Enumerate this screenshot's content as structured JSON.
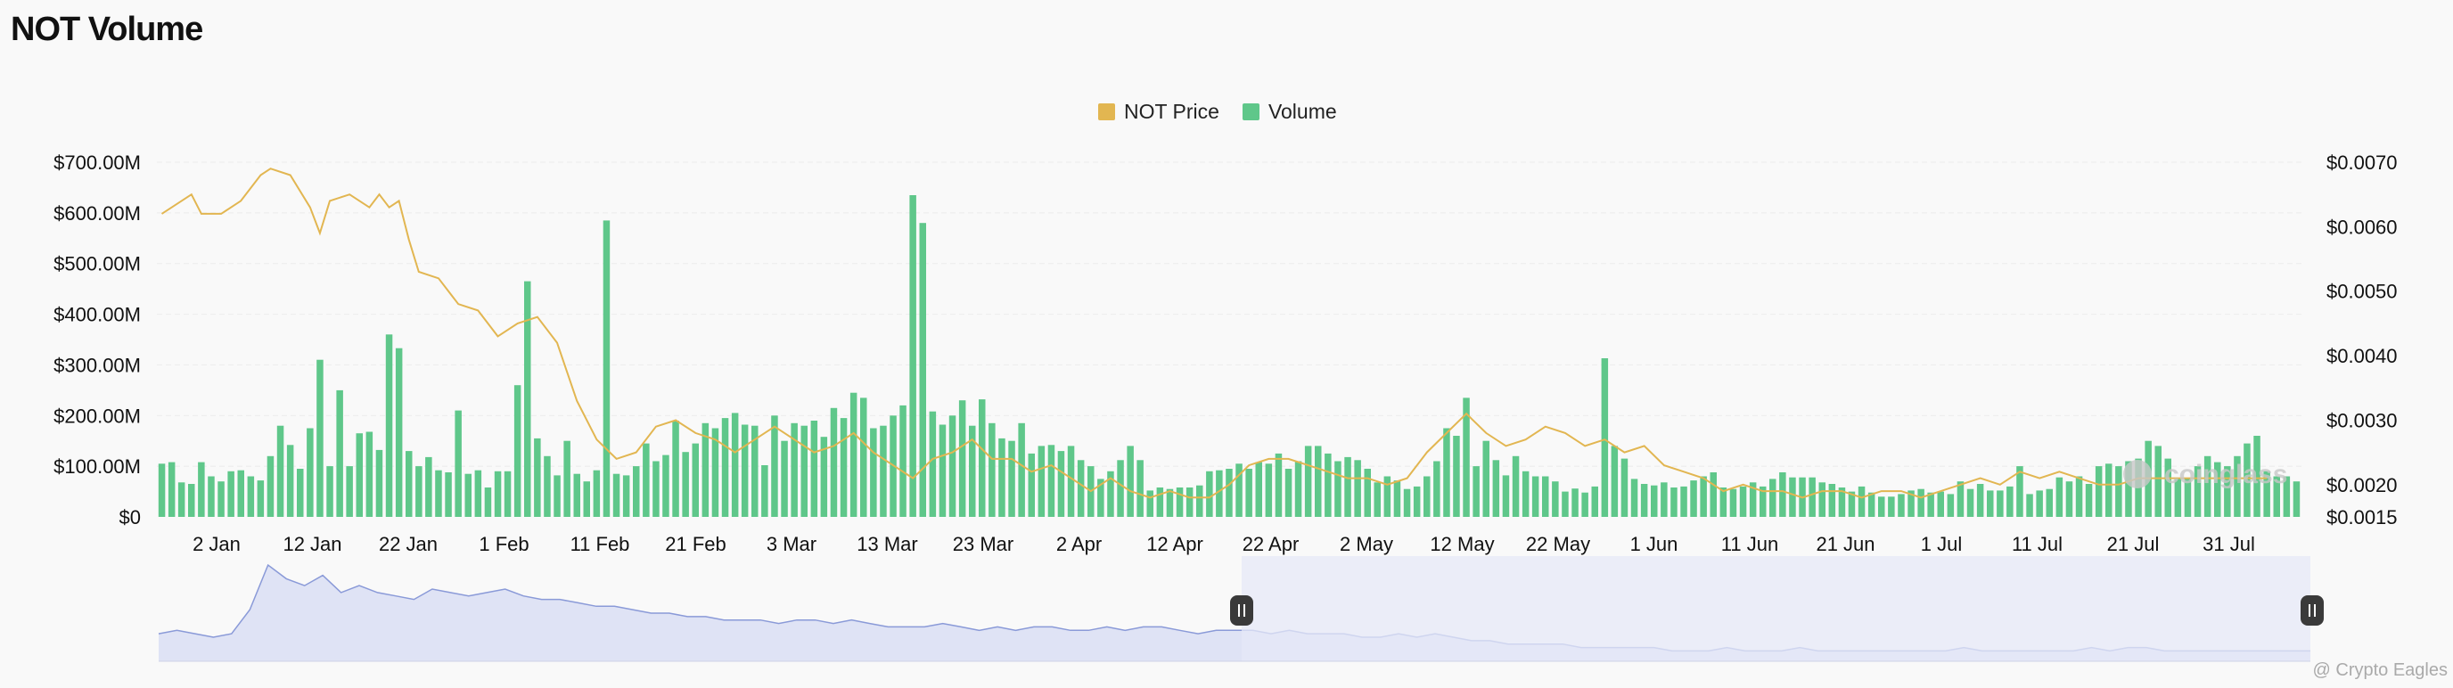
{
  "title": "NOT Volume",
  "watermark": "@ Crypto Eagles",
  "brand_watermark": "coinglass",
  "colors": {
    "background": "#f9f9f9",
    "price": "#e2b651",
    "volume": "#5fc78a",
    "navigator_line": "#8a9ad8",
    "navigator_fill": "#dfe3f5",
    "navigator_selected": "#e6e8f7",
    "grid": "#ececec"
  },
  "legend": [
    {
      "label": "NOT Price",
      "color": "#e2b651"
    },
    {
      "label": "Volume",
      "color": "#5fc78a"
    }
  ],
  "chart_data": {
    "type": "bar",
    "title": "NOT Volume",
    "xlabel": "",
    "ylabel": "",
    "grid": true,
    "legend_position": "top-center",
    "x_tick_labels": [
      "2 Jan",
      "12 Jan",
      "22 Jan",
      "1 Feb",
      "11 Feb",
      "21 Feb",
      "3 Mar",
      "13 Mar",
      "23 Mar",
      "2 Apr",
      "12 Apr",
      "22 Apr",
      "2 May",
      "12 May",
      "22 May",
      "1 Jun",
      "11 Jun",
      "21 Jun",
      "1 Jul",
      "11 Jul",
      "21 Jul",
      "31 Jul"
    ],
    "y_left": {
      "min": 0,
      "max": 700,
      "unit": "M",
      "tick_labels": [
        "$0",
        "$100.00M",
        "$200.00M",
        "$300.00M",
        "$400.00M",
        "$500.00M",
        "$600.00M",
        "$700.00M"
      ]
    },
    "y_right": {
      "min": 0.0015,
      "max": 0.007,
      "tick_labels": [
        "$0.0015",
        "$0.0020",
        "$0.0030",
        "$0.0040",
        "$0.0050",
        "$0.0060",
        "$0.0070"
      ]
    },
    "series": [
      {
        "name": "Volume",
        "type": "bar",
        "axis": "left",
        "values": [
          105,
          108,
          68,
          65,
          108,
          80,
          70,
          90,
          92,
          80,
          72,
          120,
          180,
          142,
          95,
          175,
          310,
          100,
          250,
          100,
          165,
          168,
          132,
          360,
          333,
          130,
          100,
          118,
          92,
          88,
          210,
          85,
          92,
          58,
          90,
          90,
          260,
          465,
          155,
          120,
          82,
          150,
          85,
          70,
          92,
          585,
          85,
          82,
          100,
          145,
          110,
          122,
          190,
          128,
          145,
          185,
          175,
          195,
          205,
          182,
          180,
          102,
          200,
          150,
          185,
          180,
          190,
          158,
          215,
          195,
          245,
          235,
          175,
          180,
          200,
          220,
          635,
          580,
          208,
          182,
          200,
          230,
          180,
          232,
          185,
          155,
          150,
          185,
          125,
          140,
          142,
          130,
          140,
          112,
          100,
          75,
          90,
          112,
          140,
          112,
          52,
          58,
          55,
          58,
          58,
          62,
          90,
          92,
          95,
          105,
          95,
          108,
          105,
          125,
          95,
          110,
          140,
          140,
          125,
          110,
          118,
          112,
          95,
          68,
          80,
          72,
          55,
          60,
          80,
          110,
          175,
          160,
          235,
          100,
          150,
          112,
          82,
          120,
          90,
          80,
          80,
          70,
          50,
          56,
          48,
          60,
          313,
          140,
          115,
          75,
          65,
          62,
          68,
          58,
          60,
          72,
          80,
          88,
          58,
          55,
          60,
          68,
          60,
          75,
          88,
          78,
          78,
          78,
          68,
          65,
          58,
          50,
          60,
          48,
          40,
          40,
          45,
          52,
          55,
          48,
          50,
          45,
          70,
          55,
          65,
          52,
          52,
          60,
          100,
          45,
          52,
          55,
          78,
          70,
          80,
          65,
          100,
          105,
          100,
          110,
          115,
          150,
          140,
          115,
          75,
          75,
          100,
          120,
          108,
          100,
          120,
          145,
          160,
          90,
          80,
          80,
          70
        ]
      },
      {
        "name": "NOT Price",
        "type": "line",
        "axis": "right",
        "points": [
          [
            0,
            0.0062
          ],
          [
            2,
            0.0064
          ],
          [
            3,
            0.0065
          ],
          [
            4,
            0.0062
          ],
          [
            6,
            0.0062
          ],
          [
            8,
            0.0064
          ],
          [
            10,
            0.0068
          ],
          [
            11,
            0.0069
          ],
          [
            13,
            0.0068
          ],
          [
            15,
            0.0063
          ],
          [
            16,
            0.0059
          ],
          [
            17,
            0.0064
          ],
          [
            19,
            0.0065
          ],
          [
            21,
            0.0063
          ],
          [
            22,
            0.0065
          ],
          [
            23,
            0.0063
          ],
          [
            24,
            0.0064
          ],
          [
            25,
            0.0058
          ],
          [
            26,
            0.0053
          ],
          [
            28,
            0.0052
          ],
          [
            30,
            0.0048
          ],
          [
            32,
            0.0047
          ],
          [
            34,
            0.0043
          ],
          [
            36,
            0.0045
          ],
          [
            38,
            0.0046
          ],
          [
            40,
            0.0042
          ],
          [
            42,
            0.0033
          ],
          [
            44,
            0.0027
          ],
          [
            46,
            0.0024
          ],
          [
            48,
            0.0025
          ],
          [
            50,
            0.0029
          ],
          [
            52,
            0.003
          ],
          [
            54,
            0.0028
          ],
          [
            56,
            0.0027
          ],
          [
            58,
            0.0025
          ],
          [
            60,
            0.0027
          ],
          [
            62,
            0.0029
          ],
          [
            64,
            0.0027
          ],
          [
            66,
            0.0025
          ],
          [
            68,
            0.0026
          ],
          [
            70,
            0.0028
          ],
          [
            72,
            0.0025
          ],
          [
            74,
            0.0023
          ],
          [
            76,
            0.0021
          ],
          [
            78,
            0.0024
          ],
          [
            80,
            0.0025
          ],
          [
            82,
            0.0027
          ],
          [
            84,
            0.0024
          ],
          [
            86,
            0.0024
          ],
          [
            88,
            0.0022
          ],
          [
            90,
            0.0023
          ],
          [
            92,
            0.0021
          ],
          [
            94,
            0.0019
          ],
          [
            96,
            0.0021
          ],
          [
            98,
            0.0019
          ],
          [
            100,
            0.0018
          ],
          [
            102,
            0.0019
          ],
          [
            104,
            0.0018
          ],
          [
            106,
            0.0018
          ],
          [
            108,
            0.002
          ],
          [
            110,
            0.0023
          ],
          [
            112,
            0.0024
          ],
          [
            114,
            0.0024
          ],
          [
            116,
            0.0023
          ],
          [
            118,
            0.0022
          ],
          [
            120,
            0.0021
          ],
          [
            122,
            0.0021
          ],
          [
            124,
            0.002
          ],
          [
            126,
            0.0021
          ],
          [
            128,
            0.0025
          ],
          [
            130,
            0.0028
          ],
          [
            132,
            0.0031
          ],
          [
            134,
            0.0028
          ],
          [
            136,
            0.0026
          ],
          [
            138,
            0.0027
          ],
          [
            140,
            0.0029
          ],
          [
            142,
            0.0028
          ],
          [
            144,
            0.0026
          ],
          [
            146,
            0.0027
          ],
          [
            148,
            0.0025
          ],
          [
            150,
            0.0026
          ],
          [
            152,
            0.0023
          ],
          [
            154,
            0.0022
          ],
          [
            156,
            0.0021
          ],
          [
            158,
            0.0019
          ],
          [
            160,
            0.002
          ],
          [
            162,
            0.0019
          ],
          [
            164,
            0.0019
          ],
          [
            166,
            0.0018
          ],
          [
            168,
            0.0019
          ],
          [
            170,
            0.0019
          ],
          [
            172,
            0.0018
          ],
          [
            174,
            0.0019
          ],
          [
            176,
            0.0019
          ],
          [
            178,
            0.0018
          ],
          [
            180,
            0.0019
          ],
          [
            182,
            0.002
          ],
          [
            184,
            0.0021
          ],
          [
            186,
            0.002
          ],
          [
            188,
            0.0022
          ],
          [
            190,
            0.0021
          ],
          [
            192,
            0.0022
          ],
          [
            194,
            0.0021
          ],
          [
            196,
            0.002
          ],
          [
            198,
            0.002
          ],
          [
            200,
            0.0021
          ],
          [
            202,
            0.0021
          ],
          [
            204,
            0.0021
          ],
          [
            206,
            0.0021
          ],
          [
            208,
            0.0021
          ],
          [
            210,
            0.0021
          ],
          [
            212,
            0.0021
          ],
          [
            213,
            0.0021
          ]
        ]
      }
    ],
    "navigator": {
      "series": [
        8,
        9,
        8,
        7,
        8,
        15,
        28,
        24,
        22,
        25,
        20,
        22,
        20,
        19,
        18,
        21,
        20,
        19,
        20,
        21,
        19,
        18,
        18,
        17,
        16,
        16,
        15,
        14,
        14,
        13,
        13,
        12,
        12,
        12,
        11,
        12,
        12,
        11,
        12,
        11,
        10,
        10,
        10,
        11,
        10,
        9,
        10,
        9,
        10,
        10,
        9,
        9,
        10,
        9,
        10,
        10,
        9,
        8,
        9,
        9,
        9,
        8,
        9,
        8,
        8,
        8,
        7,
        7,
        8,
        7,
        8,
        7,
        6,
        6,
        5,
        5,
        5,
        5,
        4,
        4,
        4,
        4,
        4,
        3,
        3,
        3,
        4,
        3,
        3,
        3,
        4,
        3,
        3,
        3,
        3,
        3,
        3,
        3,
        3,
        4,
        3,
        3,
        3,
        3,
        3,
        3,
        4,
        3,
        4,
        4,
        3,
        3,
        3,
        3,
        3,
        3,
        3,
        3,
        3
      ],
      "selected_from": 0.5,
      "selected_to": 1.0
    }
  }
}
